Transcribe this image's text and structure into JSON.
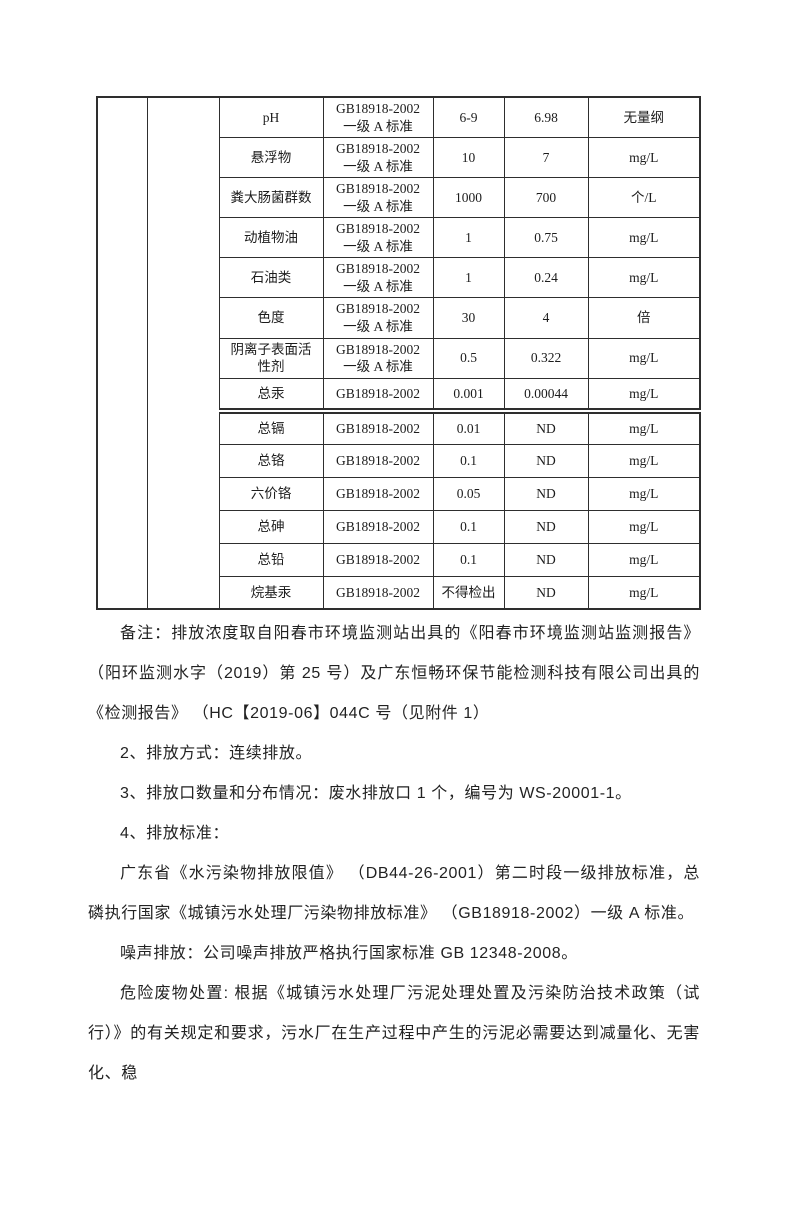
{
  "colors": {
    "background": "#ffffff",
    "text": "#1c1c1c",
    "table_border": "#2e2e2e"
  },
  "table": {
    "rows": [
      {
        "param": "pH",
        "standard": "GB18918-2002 一级 A 标准",
        "limit": "6-9",
        "value": "6.98",
        "unit": "无量纲"
      },
      {
        "param": "悬浮物",
        "standard": "GB18918-2002 一级 A 标准",
        "limit": "10",
        "value": "7",
        "unit": "mg/L"
      },
      {
        "param": "粪大肠菌群数",
        "standard": "GB18918-2002 一级 A 标准",
        "limit": "1000",
        "value": "700",
        "unit": "个/L"
      },
      {
        "param": "动植物油",
        "standard": "GB18918-2002 一级 A 标准",
        "limit": "1",
        "value": "0.75",
        "unit": "mg/L"
      },
      {
        "param": "石油类",
        "standard": "GB18918-2002 一级 A 标准",
        "limit": "1",
        "value": "0.24",
        "unit": "mg/L"
      },
      {
        "param": "色度",
        "standard": "GB18918-2002 一级 A 标准",
        "limit": "30",
        "value": "4",
        "unit": "倍"
      },
      {
        "param": "阴离子表面活性剂",
        "standard": "GB18918-2002 一级 A 标准",
        "limit": "0.5",
        "value": "0.322",
        "unit": "mg/L"
      },
      {
        "param": "总汞",
        "standard": "GB18918-2002",
        "limit": "0.001",
        "value": "0.00044",
        "unit": "mg/L"
      },
      {
        "param": "总镉",
        "standard": "GB18918-2002",
        "limit": "0.01",
        "value": "ND",
        "unit": "mg/L"
      },
      {
        "param": "总铬",
        "standard": "GB18918-2002",
        "limit": "0.1",
        "value": "ND",
        "unit": "mg/L"
      },
      {
        "param": "六价铬",
        "standard": "GB18918-2002",
        "limit": "0.05",
        "value": "ND",
        "unit": "mg/L"
      },
      {
        "param": "总砷",
        "standard": "GB18918-2002",
        "limit": "0.1",
        "value": "ND",
        "unit": "mg/L"
      },
      {
        "param": "总铅",
        "standard": "GB18918-2002",
        "limit": "0.1",
        "value": "ND",
        "unit": "mg/L"
      },
      {
        "param": "烷基汞",
        "standard": "GB18918-2002",
        "limit": "不得检出",
        "value": "ND",
        "unit": "mg/L"
      }
    ]
  },
  "paragraphs": [
    {
      "text": "备注：排放浓度取自阳春市环境监测站出具的《阳春市环境监测站监测报告》（阳环监测水字（2019）第 25 号）及广东恒畅环保节能检测科技有限公司出具的《检测报告》 （HC【2019-06】044C 号（见附件 1）"
    },
    {
      "text": "2、排放方式：连续排放。"
    },
    {
      "text": "3、排放口数量和分布情况：废水排放口 1 个，编号为 WS-20001-1。"
    },
    {
      "text": "4、排放标准："
    },
    {
      "text": "广东省《水污染物排放限值》 （DB44-26-2001）第二时段一级排放标准，总磷执行国家《城镇污水处理厂污染物排放标准》 （GB18918-2002）一级 A 标准。"
    },
    {
      "text": "噪声排放：公司噪声排放严格执行国家标准 GB 12348-2008。"
    },
    {
      "text": "危险废物处置: 根据《城镇污水处理厂污泥处理处置及污染防治技术政策（试行）》的有关规定和要求，污水厂在生产过程中产生的污泥必需要达到减量化、无害化、稳"
    }
  ]
}
